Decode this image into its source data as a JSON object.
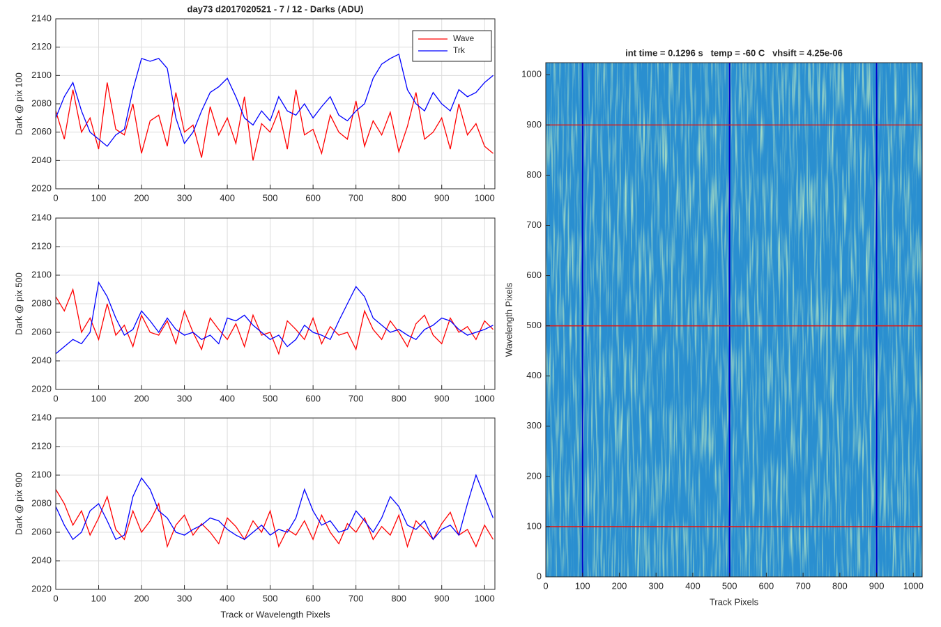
{
  "chart_data": [
    {
      "type": "line",
      "title": "day73 d2017020521 - 7 / 12 - Darks (ADU)",
      "ylabel": "Dark @ pix 100",
      "x": [
        0,
        20,
        40,
        60,
        80,
        100,
        120,
        140,
        160,
        180,
        200,
        220,
        240,
        260,
        280,
        300,
        320,
        340,
        360,
        380,
        400,
        420,
        440,
        460,
        480,
        500,
        520,
        540,
        560,
        580,
        600,
        620,
        640,
        660,
        680,
        700,
        720,
        740,
        760,
        780,
        800,
        820,
        840,
        860,
        880,
        900,
        920,
        940,
        960,
        980,
        1000,
        1020
      ],
      "series": [
        {
          "name": "Wave",
          "color": "#ff0000",
          "values": [
            2075,
            2055,
            2090,
            2060,
            2070,
            2048,
            2095,
            2062,
            2058,
            2080,
            2045,
            2068,
            2072,
            2050,
            2088,
            2060,
            2065,
            2042,
            2078,
            2058,
            2070,
            2052,
            2085,
            2040,
            2066,
            2060,
            2075,
            2048,
            2090,
            2058,
            2062,
            2045,
            2072,
            2060,
            2055,
            2082,
            2050,
            2068,
            2058,
            2074,
            2046,
            2064,
            2088,
            2055,
            2060,
            2070,
            2048,
            2080,
            2058,
            2066,
            2050,
            2045
          ]
        },
        {
          "name": "Trk",
          "color": "#0000ff",
          "values": [
            2070,
            2085,
            2095,
            2075,
            2060,
            2055,
            2050,
            2058,
            2062,
            2090,
            2112,
            2110,
            2112,
            2105,
            2070,
            2052,
            2060,
            2075,
            2088,
            2092,
            2098,
            2085,
            2070,
            2065,
            2075,
            2068,
            2085,
            2075,
            2072,
            2080,
            2070,
            2078,
            2085,
            2072,
            2068,
            2075,
            2080,
            2098,
            2108,
            2112,
            2115,
            2090,
            2080,
            2075,
            2088,
            2080,
            2075,
            2090,
            2085,
            2088,
            2095,
            2100
          ]
        }
      ],
      "xlim": [
        0,
        1024
      ],
      "xticks": [
        0,
        100,
        200,
        300,
        400,
        500,
        600,
        700,
        800,
        900,
        1000
      ],
      "ylim": [
        2020,
        2140
      ],
      "yticks": [
        2020,
        2040,
        2060,
        2080,
        2100,
        2120,
        2140
      ],
      "grid": true,
      "legend": "northeast"
    },
    {
      "type": "line",
      "ylabel": "Dark @ pix 500",
      "x": [
        0,
        20,
        40,
        60,
        80,
        100,
        120,
        140,
        160,
        180,
        200,
        220,
        240,
        260,
        280,
        300,
        320,
        340,
        360,
        380,
        400,
        420,
        440,
        460,
        480,
        500,
        520,
        540,
        560,
        580,
        600,
        620,
        640,
        660,
        680,
        700,
        720,
        740,
        760,
        780,
        800,
        820,
        840,
        860,
        880,
        900,
        920,
        940,
        960,
        980,
        1000,
        1020
      ],
      "series": [
        {
          "color": "#ff0000",
          "values": [
            2085,
            2075,
            2090,
            2060,
            2070,
            2055,
            2080,
            2058,
            2065,
            2050,
            2072,
            2060,
            2058,
            2068,
            2052,
            2075,
            2060,
            2048,
            2070,
            2062,
            2055,
            2066,
            2050,
            2072,
            2058,
            2060,
            2045,
            2068,
            2062,
            2055,
            2070,
            2052,
            2064,
            2058,
            2060,
            2048,
            2075,
            2062,
            2055,
            2068,
            2060,
            2050,
            2066,
            2072,
            2058,
            2052,
            2070,
            2060,
            2064,
            2055,
            2068,
            2062
          ]
        },
        {
          "color": "#0000ff",
          "values": [
            2045,
            2050,
            2055,
            2052,
            2060,
            2095,
            2085,
            2070,
            2058,
            2062,
            2075,
            2068,
            2060,
            2070,
            2062,
            2058,
            2060,
            2055,
            2058,
            2052,
            2070,
            2068,
            2072,
            2065,
            2060,
            2055,
            2058,
            2050,
            2055,
            2065,
            2060,
            2058,
            2055,
            2068,
            2080,
            2092,
            2085,
            2070,
            2065,
            2060,
            2062,
            2058,
            2055,
            2062,
            2065,
            2070,
            2068,
            2062,
            2058,
            2060,
            2062,
            2065
          ]
        }
      ],
      "xlim": [
        0,
        1024
      ],
      "xticks": [
        0,
        100,
        200,
        300,
        400,
        500,
        600,
        700,
        800,
        900,
        1000
      ],
      "ylim": [
        2020,
        2140
      ],
      "yticks": [
        2020,
        2040,
        2060,
        2080,
        2100,
        2120,
        2140
      ],
      "grid": true
    },
    {
      "type": "line",
      "ylabel": "Dark @ pix 900",
      "xlabel": "Track or Wavelength Pixels",
      "x": [
        0,
        20,
        40,
        60,
        80,
        100,
        120,
        140,
        160,
        180,
        200,
        220,
        240,
        260,
        280,
        300,
        320,
        340,
        360,
        380,
        400,
        420,
        440,
        460,
        480,
        500,
        520,
        540,
        560,
        580,
        600,
        620,
        640,
        660,
        680,
        700,
        720,
        740,
        760,
        780,
        800,
        820,
        840,
        860,
        880,
        900,
        920,
        940,
        960,
        980,
        1000,
        1020
      ],
      "series": [
        {
          "color": "#ff0000",
          "values": [
            2090,
            2080,
            2065,
            2075,
            2058,
            2070,
            2085,
            2062,
            2055,
            2075,
            2060,
            2068,
            2080,
            2050,
            2065,
            2072,
            2058,
            2066,
            2060,
            2052,
            2070,
            2064,
            2055,
            2068,
            2060,
            2075,
            2050,
            2062,
            2058,
            2068,
            2055,
            2072,
            2060,
            2052,
            2066,
            2060,
            2070,
            2055,
            2064,
            2058,
            2072,
            2050,
            2068,
            2062,
            2055,
            2066,
            2074,
            2058,
            2062,
            2050,
            2065,
            2055
          ]
        },
        {
          "color": "#0000ff",
          "values": [
            2078,
            2065,
            2055,
            2060,
            2075,
            2080,
            2068,
            2055,
            2058,
            2085,
            2098,
            2090,
            2075,
            2070,
            2060,
            2058,
            2062,
            2065,
            2070,
            2068,
            2062,
            2058,
            2055,
            2060,
            2065,
            2058,
            2062,
            2060,
            2070,
            2090,
            2075,
            2065,
            2068,
            2060,
            2062,
            2075,
            2068,
            2060,
            2070,
            2085,
            2078,
            2065,
            2062,
            2068,
            2055,
            2062,
            2065,
            2058,
            2080,
            2100,
            2085,
            2070
          ]
        }
      ],
      "xlim": [
        0,
        1024
      ],
      "xticks": [
        0,
        100,
        200,
        300,
        400,
        500,
        600,
        700,
        800,
        900,
        1000
      ],
      "ylim": [
        2020,
        2140
      ],
      "yticks": [
        2020,
        2040,
        2060,
        2080,
        2100,
        2120,
        2140
      ],
      "grid": true
    },
    {
      "type": "image",
      "title": "int time = 0.1296 s   temp = -60 C   vhsift = 4.25e-06",
      "xlabel": "Track Pixels",
      "ylabel": "Wavelength Pixels",
      "xlim": [
        0,
        1024
      ],
      "xticks": [
        0,
        100,
        200,
        300,
        400,
        500,
        600,
        700,
        800,
        900,
        1000
      ],
      "ylim": [
        0,
        1024
      ],
      "yticks": [
        0,
        100,
        200,
        300,
        400,
        500,
        600,
        700,
        800,
        900,
        1000
      ],
      "vlines": {
        "color": "#0000c8",
        "values": [
          100,
          500,
          900
        ]
      },
      "hlines": {
        "color": "#d81e1e",
        "values": [
          100,
          500,
          900
        ]
      }
    }
  ]
}
